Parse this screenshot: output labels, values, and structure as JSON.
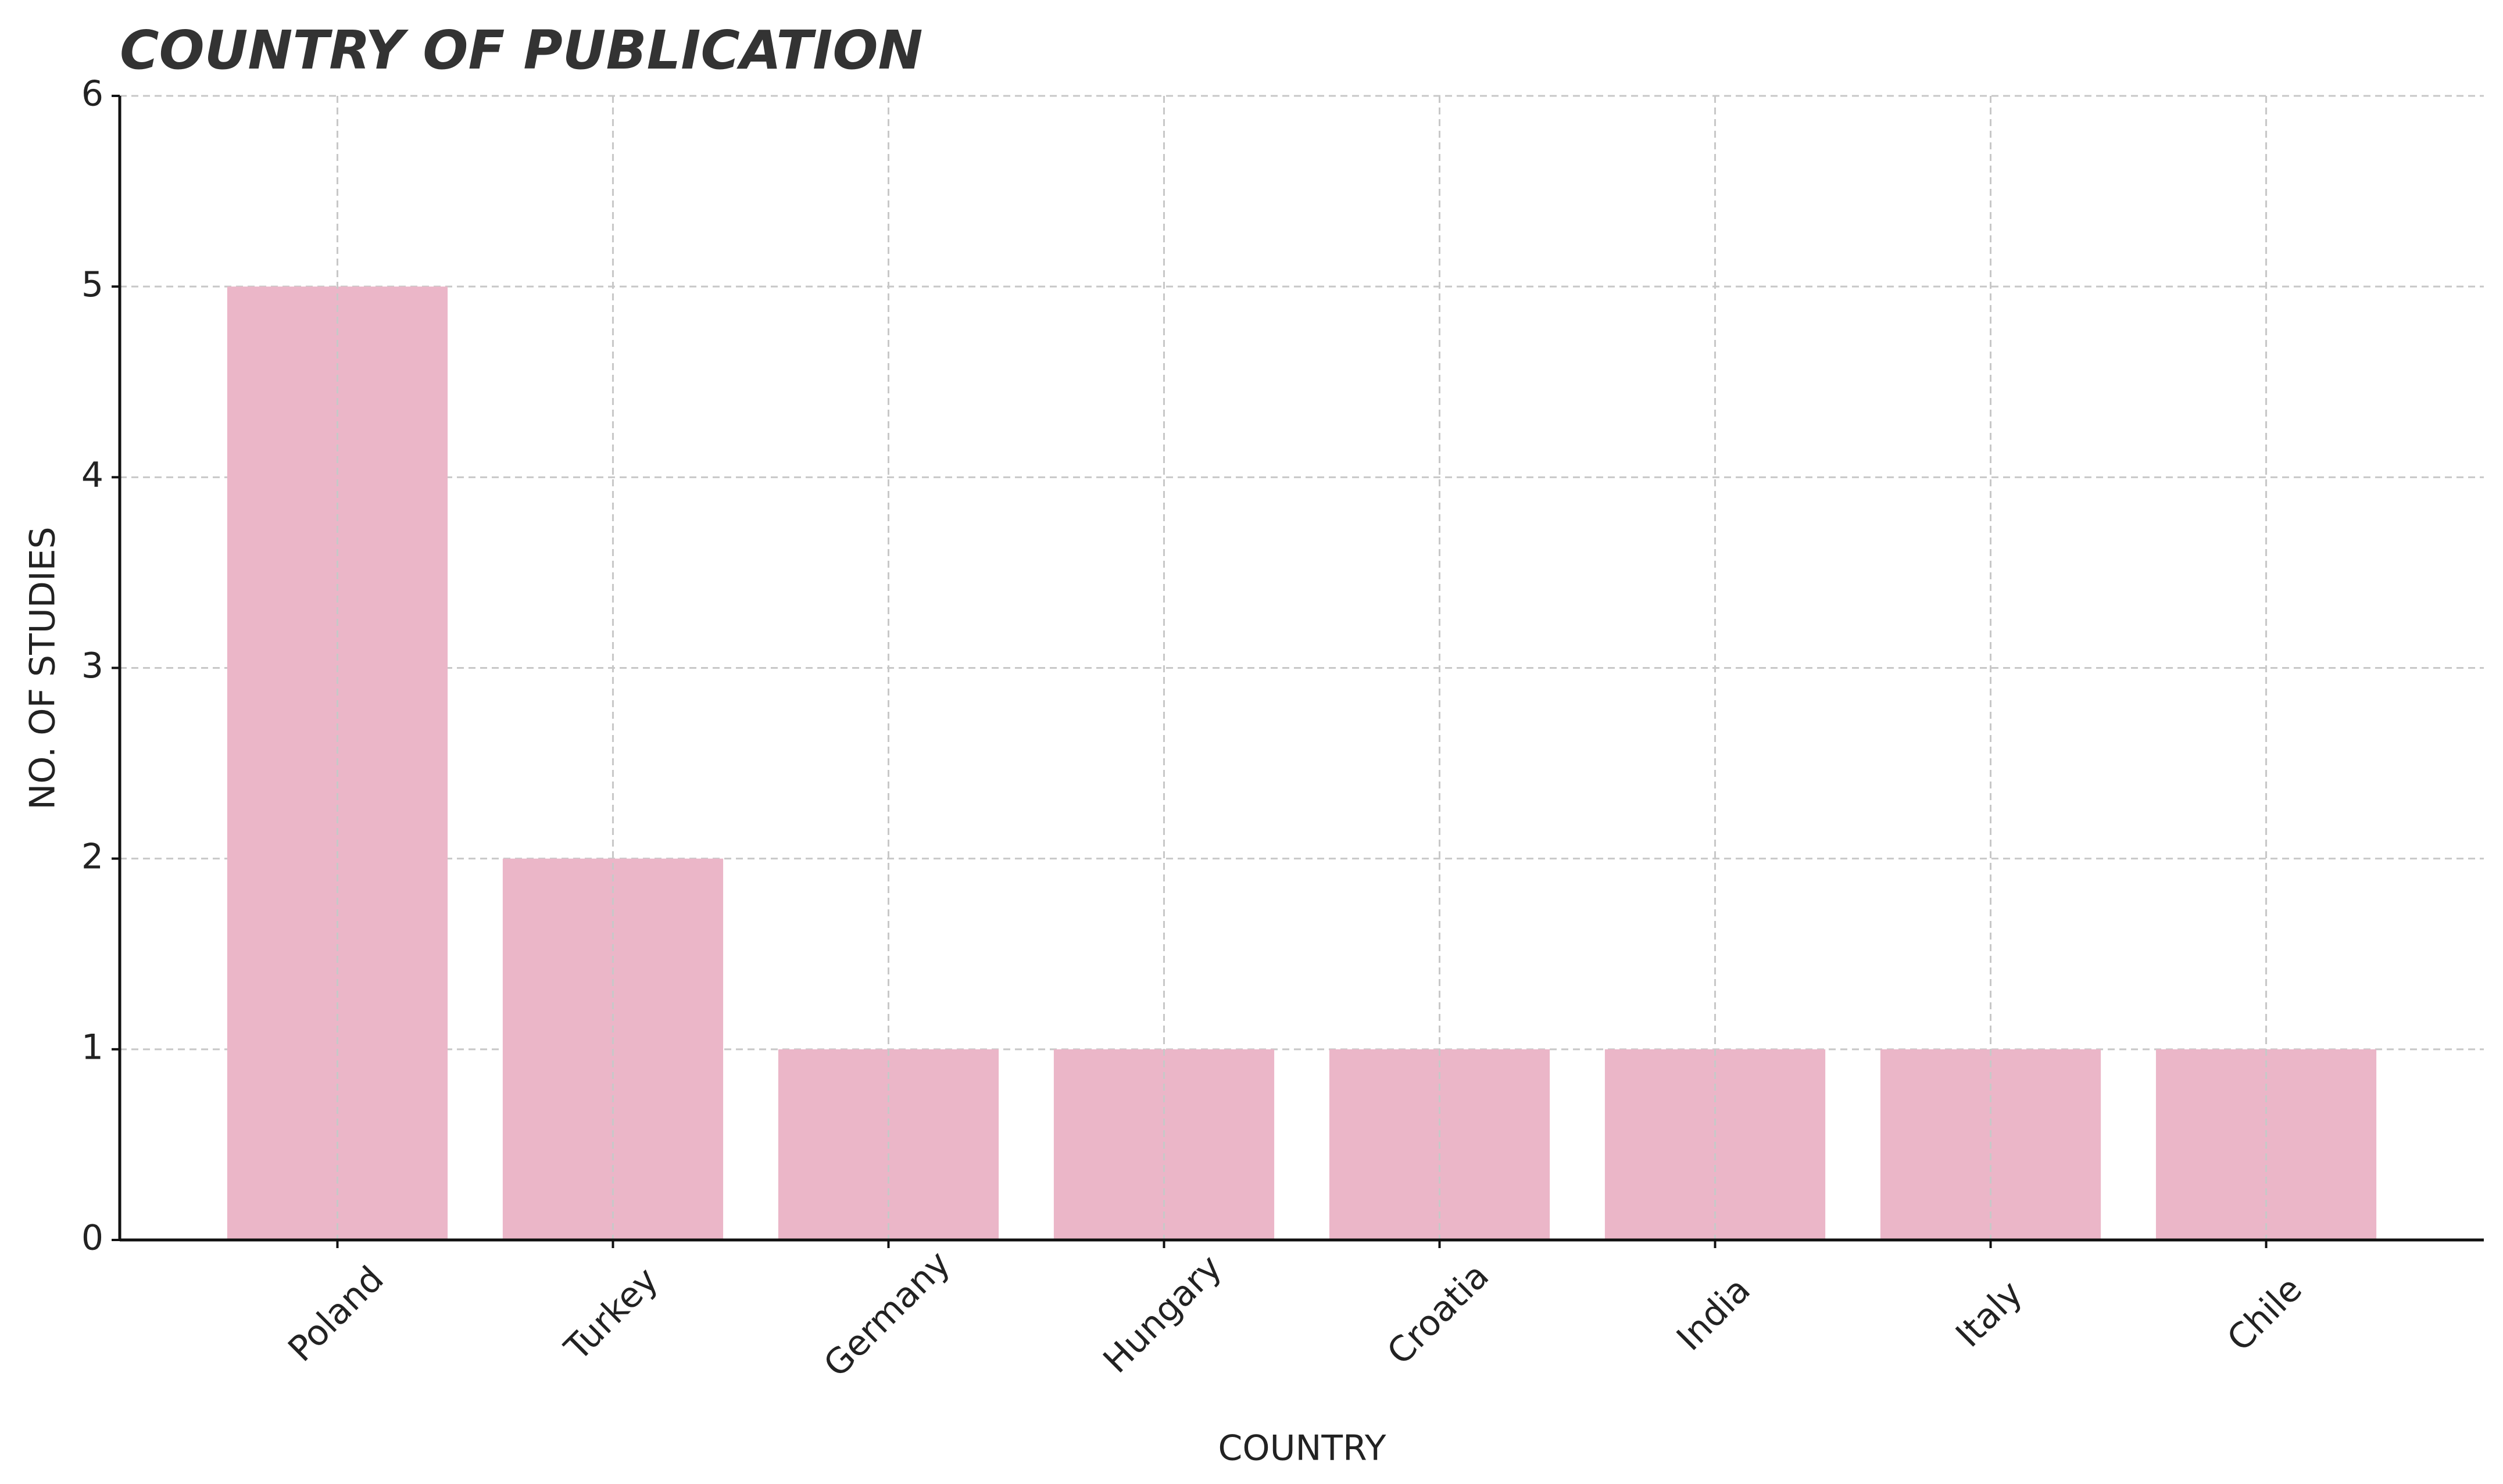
{
  "chart_data": {
    "type": "bar",
    "title": "COUNTRY OF PUBLICATION",
    "x_label": "COUNTRY",
    "y_label": "NO. OF STUDIES",
    "categories": [
      "Poland",
      "Turkey",
      "Germany",
      "Hungary",
      "Croatia",
      "India",
      "Italy",
      "Chile"
    ],
    "values": [
      5,
      2,
      1,
      1,
      1,
      1,
      1,
      1
    ],
    "color": "#ebb6c8",
    "ylim": [
      0,
      6
    ],
    "yticks": [
      0,
      1,
      2,
      3,
      4,
      5,
      6
    ],
    "grid": true
  }
}
